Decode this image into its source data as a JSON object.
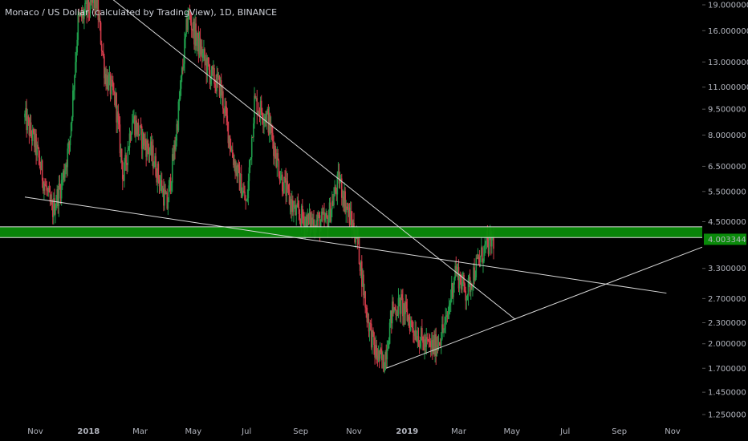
{
  "chart_data": {
    "type": "candlestick",
    "title": "Monaco / US Dollar (calculated by TradingView), 1D, BINANCE",
    "y_scale": "log",
    "ylim": [
      1.15,
      20.0
    ],
    "y_ticks": [
      "19.000000",
      "16.000000",
      "13.000000",
      "11.000000",
      "9.500000",
      "8.000000",
      "6.500000",
      "5.500000",
      "4.500000",
      "3.300000",
      "2.700000",
      "2.300000",
      "2.000000",
      "1.700000",
      "1.450000",
      "1.250000"
    ],
    "y_tick_values": [
      19.0,
      16.0,
      13.0,
      11.0,
      9.5,
      8.0,
      6.5,
      5.5,
      4.5,
      3.3,
      2.7,
      2.3,
      2.0,
      1.7,
      1.45,
      1.25
    ],
    "x_ticks": [
      {
        "label": "Nov",
        "date": "2017-11-01",
        "bold": false
      },
      {
        "label": "2018",
        "date": "2018-01-01",
        "bold": true
      },
      {
        "label": "Mar",
        "date": "2018-03-01",
        "bold": false
      },
      {
        "label": "May",
        "date": "2018-05-01",
        "bold": false
      },
      {
        "label": "Jul",
        "date": "2018-07-01",
        "bold": false
      },
      {
        "label": "Sep",
        "date": "2018-09-01",
        "bold": false
      },
      {
        "label": "Nov",
        "date": "2018-11-01",
        "bold": false
      },
      {
        "label": "2019",
        "date": "2019-01-01",
        "bold": true
      },
      {
        "label": "Mar",
        "date": "2019-03-01",
        "bold": false
      },
      {
        "label": "May",
        "date": "2019-05-01",
        "bold": false
      },
      {
        "label": "Jul",
        "date": "2019-07-01",
        "bold": false
      },
      {
        "label": "Sep",
        "date": "2019-09-01",
        "bold": false
      },
      {
        "label": "Nov",
        "date": "2019-11-01",
        "bold": false
      }
    ],
    "last_price": "4.003344",
    "last_price_value": 4.003344,
    "price_path": [
      [
        "2017-10-20",
        9.0
      ],
      [
        "2017-11-01",
        7.5
      ],
      [
        "2017-11-10",
        6.0
      ],
      [
        "2017-11-20",
        4.8
      ],
      [
        "2017-12-01",
        5.8
      ],
      [
        "2017-12-10",
        7.5
      ],
      [
        "2017-12-20",
        17.0
      ],
      [
        "2018-01-01",
        18.5
      ],
      [
        "2018-01-10",
        19.5
      ],
      [
        "2018-01-20",
        12.0
      ],
      [
        "2018-02-01",
        10.0
      ],
      [
        "2018-02-10",
        6.0
      ],
      [
        "2018-02-20",
        9.0
      ],
      [
        "2018-03-01",
        8.0
      ],
      [
        "2018-03-15",
        7.0
      ],
      [
        "2018-04-01",
        5.0
      ],
      [
        "2018-04-10",
        7.5
      ],
      [
        "2018-04-25",
        18.0
      ],
      [
        "2018-05-05",
        15.0
      ],
      [
        "2018-05-20",
        12.0
      ],
      [
        "2018-06-01",
        11.0
      ],
      [
        "2018-06-15",
        7.0
      ],
      [
        "2018-07-01",
        5.0
      ],
      [
        "2018-07-10",
        10.0
      ],
      [
        "2018-07-25",
        9.0
      ],
      [
        "2018-08-10",
        6.0
      ],
      [
        "2018-08-25",
        4.8
      ],
      [
        "2018-09-10",
        4.5
      ],
      [
        "2018-10-01",
        4.5
      ],
      [
        "2018-10-15",
        6.0
      ],
      [
        "2018-10-25",
        4.8
      ],
      [
        "2018-11-05",
        4.0
      ],
      [
        "2018-11-15",
        2.5
      ],
      [
        "2018-11-25",
        1.9
      ],
      [
        "2018-12-05",
        1.75
      ],
      [
        "2018-12-15",
        2.5
      ],
      [
        "2018-12-25",
        2.6
      ],
      [
        "2019-01-05",
        2.3
      ],
      [
        "2019-01-20",
        2.0
      ],
      [
        "2019-02-01",
        1.95
      ],
      [
        "2019-02-15",
        2.3
      ],
      [
        "2019-02-25",
        3.3
      ],
      [
        "2019-03-10",
        2.8
      ],
      [
        "2019-03-20",
        3.3
      ],
      [
        "2019-04-01",
        3.8
      ],
      [
        "2019-04-10",
        4.0
      ]
    ],
    "annotations": {
      "support_zone": {
        "upper": 4.35,
        "lower": 4.05,
        "color": "#0a8a0a"
      },
      "trendlines": [
        {
          "name": "descending",
          "points": [
            [
              "2018-01-20",
              20.5
            ],
            [
              "2019-05-05",
              2.35
            ]
          ]
        },
        {
          "name": "long-descending",
          "points": [
            [
              "2017-10-20",
              5.3
            ],
            [
              "2019-10-25",
              2.8
            ]
          ]
        },
        {
          "name": "ascending",
          "points": [
            [
              "2018-12-08",
              1.7
            ],
            [
              "2019-12-05",
              3.8
            ]
          ]
        }
      ]
    },
    "colors": {
      "up": "#1f9b4a",
      "down": "#d13b4a",
      "line": "#d9d9d9",
      "background": "#000000",
      "zone": "#0a8a0a"
    }
  }
}
